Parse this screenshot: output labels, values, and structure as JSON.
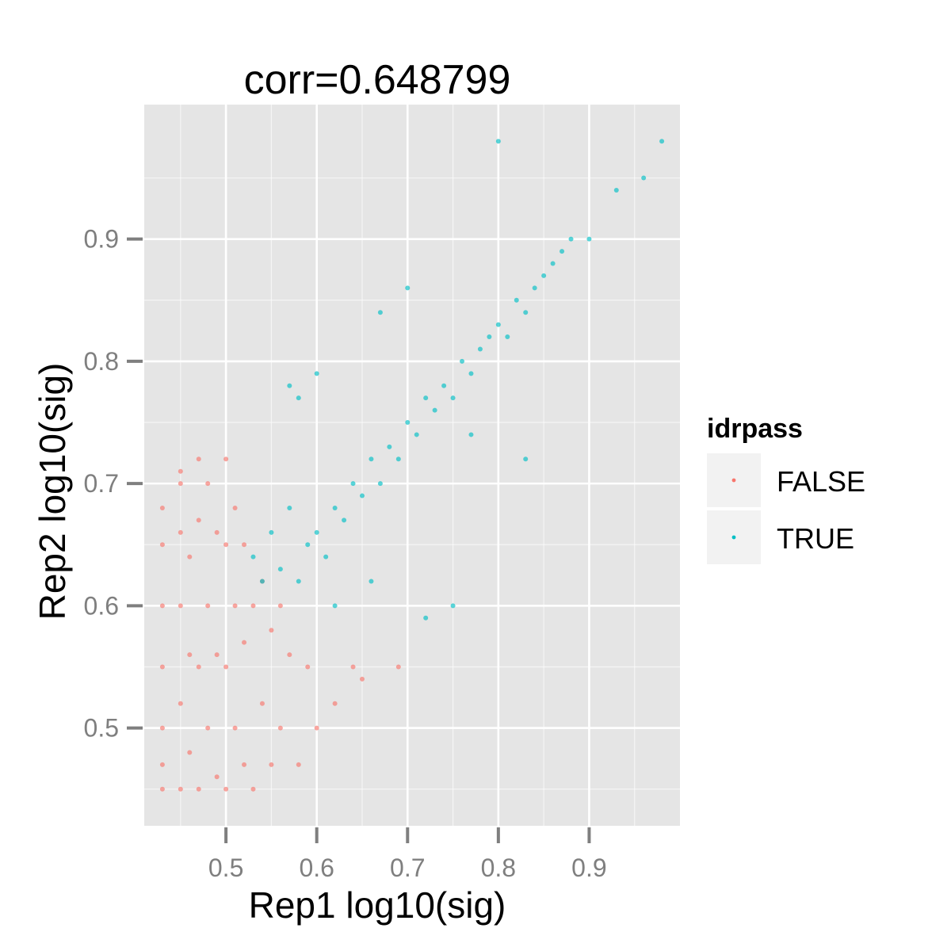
{
  "chart_data": {
    "type": "scatter",
    "title": "corr=0.648799",
    "xlabel": "Rep1 log10(sig)",
    "ylabel": "Rep2 log10(sig)",
    "xlim": [
      0.41,
      1.0
    ],
    "ylim": [
      0.42,
      1.01
    ],
    "xticks": [
      0.5,
      0.6,
      0.7,
      0.8,
      0.9
    ],
    "yticks": [
      0.5,
      0.6,
      0.7,
      0.8,
      0.9
    ],
    "xtick_labels": [
      "0.5",
      "0.6",
      "0.7",
      "0.8",
      "0.9"
    ],
    "ytick_labels": [
      "0.5",
      "0.6",
      "0.7",
      "0.8",
      "0.9"
    ],
    "grid": true,
    "legend": {
      "title": "idrpass",
      "placement": "right",
      "entries": [
        "FALSE",
        "TRUE"
      ]
    },
    "colors": {
      "FALSE": "#F8766D",
      "TRUE": "#00BFC4",
      "panel": "#E5E5E5",
      "grid": "#FFFFFF",
      "legend_key": "#F2F2F2",
      "tick_text": "#7F7F7F"
    },
    "series": [
      {
        "name": "FALSE",
        "x": [
          0.43,
          0.43,
          0.43,
          0.43,
          0.43,
          0.43,
          0.43,
          0.45,
          0.45,
          0.45,
          0.45,
          0.45,
          0.46,
          0.46,
          0.46,
          0.47,
          0.47,
          0.47,
          0.48,
          0.48,
          0.48,
          0.49,
          0.49,
          0.49,
          0.5,
          0.5,
          0.5,
          0.51,
          0.51,
          0.51,
          0.52,
          0.52,
          0.52,
          0.53,
          0.53,
          0.54,
          0.54,
          0.55,
          0.55,
          0.56,
          0.56,
          0.57,
          0.58,
          0.59,
          0.6,
          0.62,
          0.64,
          0.65,
          0.69,
          0.45,
          0.47,
          0.5
        ],
        "y": [
          0.45,
          0.5,
          0.55,
          0.6,
          0.65,
          0.68,
          0.47,
          0.45,
          0.52,
          0.6,
          0.66,
          0.7,
          0.48,
          0.56,
          0.64,
          0.45,
          0.55,
          0.67,
          0.5,
          0.6,
          0.7,
          0.46,
          0.56,
          0.66,
          0.45,
          0.55,
          0.65,
          0.5,
          0.6,
          0.68,
          0.47,
          0.57,
          0.65,
          0.45,
          0.6,
          0.52,
          0.62,
          0.47,
          0.58,
          0.5,
          0.6,
          0.56,
          0.47,
          0.55,
          0.5,
          0.52,
          0.55,
          0.54,
          0.55,
          0.71,
          0.72,
          0.72
        ]
      },
      {
        "name": "TRUE",
        "x": [
          0.53,
          0.54,
          0.55,
          0.56,
          0.57,
          0.58,
          0.59,
          0.6,
          0.61,
          0.62,
          0.63,
          0.64,
          0.65,
          0.66,
          0.67,
          0.68,
          0.69,
          0.7,
          0.71,
          0.72,
          0.73,
          0.74,
          0.75,
          0.76,
          0.77,
          0.78,
          0.79,
          0.8,
          0.81,
          0.82,
          0.83,
          0.84,
          0.85,
          0.86,
          0.87,
          0.88,
          0.9,
          0.93,
          0.96,
          0.98,
          0.8,
          0.83,
          0.77,
          0.7,
          0.67,
          0.6,
          0.57,
          0.62,
          0.72,
          0.75,
          0.58,
          0.66
        ],
        "y": [
          0.64,
          0.62,
          0.66,
          0.63,
          0.68,
          0.62,
          0.65,
          0.66,
          0.64,
          0.68,
          0.67,
          0.7,
          0.69,
          0.72,
          0.7,
          0.73,
          0.72,
          0.75,
          0.74,
          0.77,
          0.76,
          0.78,
          0.77,
          0.8,
          0.79,
          0.81,
          0.82,
          0.83,
          0.82,
          0.85,
          0.84,
          0.86,
          0.87,
          0.88,
          0.89,
          0.9,
          0.9,
          0.94,
          0.95,
          0.98,
          0.98,
          0.72,
          0.74,
          0.86,
          0.84,
          0.79,
          0.78,
          0.6,
          0.59,
          0.6,
          0.77,
          0.62
        ]
      }
    ]
  }
}
